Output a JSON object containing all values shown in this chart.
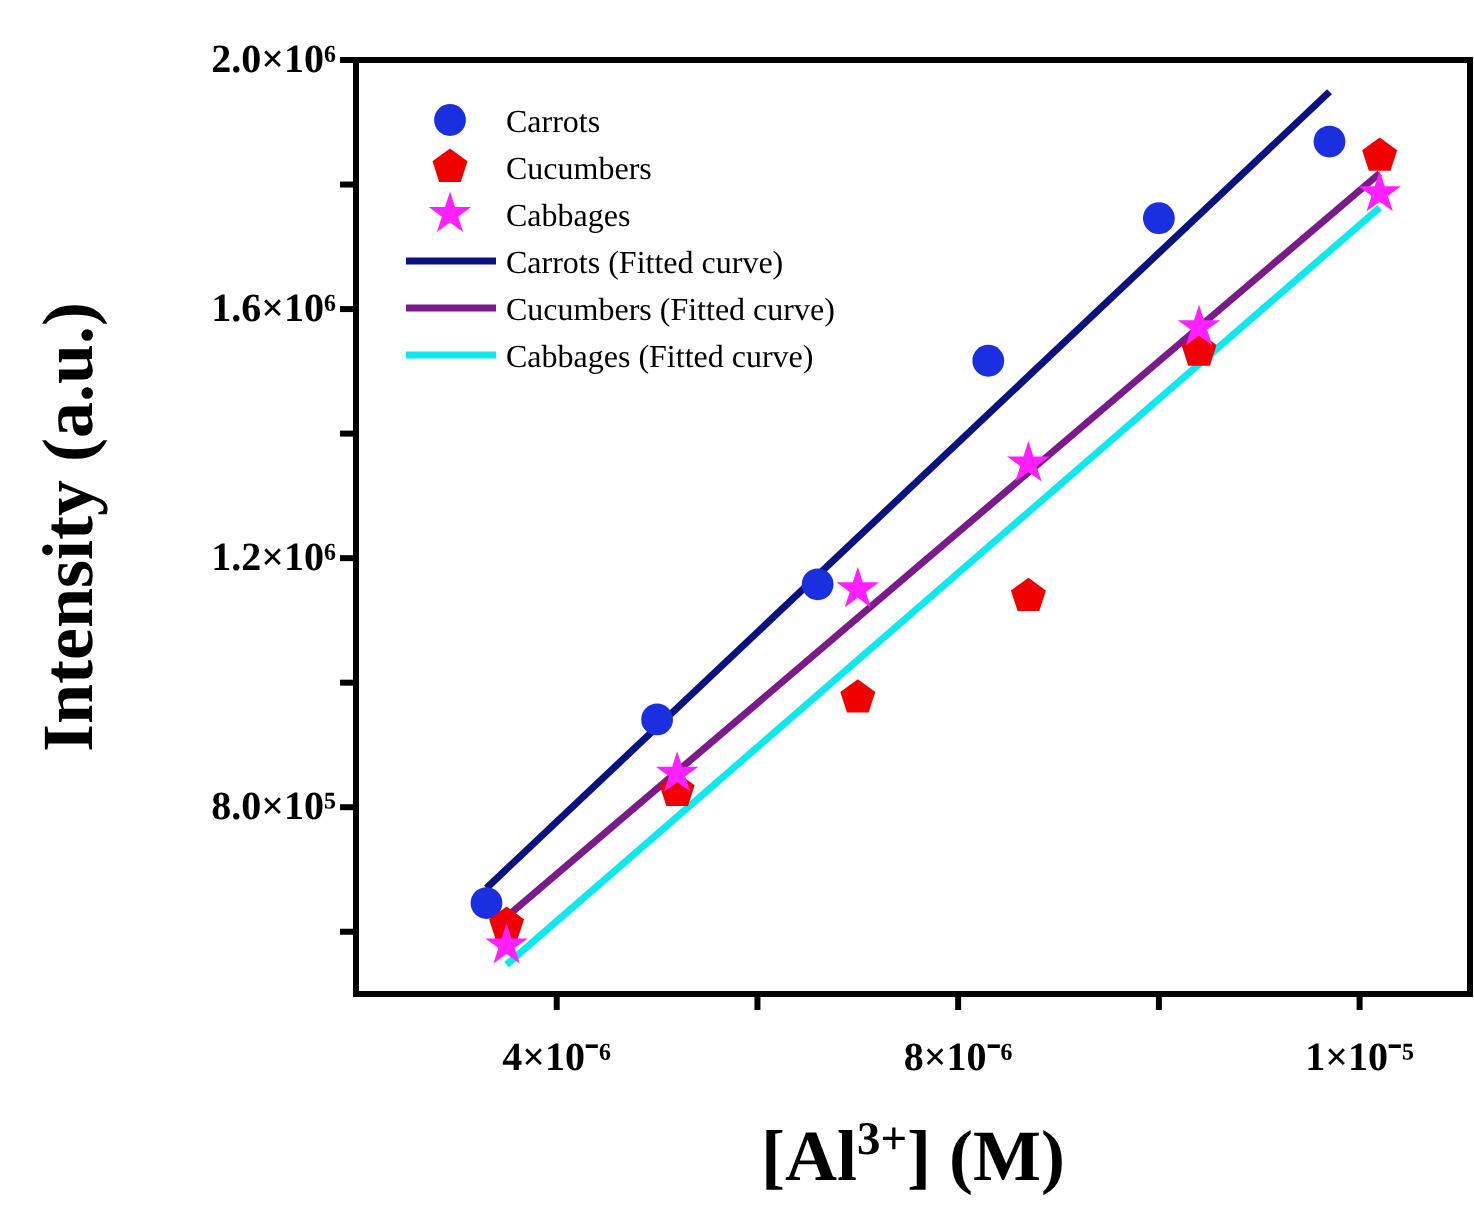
{
  "chart_data": {
    "type": "scatter",
    "xlabel": "[Al$^{3+}$] (M)",
    "ylabel": "Intensity (a.u.)",
    "xlim": [
      2e-06,
      1.31e-05
    ],
    "ylim": [
      500000,
      2000000
    ],
    "xticks": [
      {
        "value": 4e-06,
        "label": "4×10⁻⁶"
      },
      {
        "value": 6e-06,
        "label": null
      },
      {
        "value": 8e-06,
        "label": "8×10⁻⁶"
      },
      {
        "value": 1e-05,
        "label": null
      },
      {
        "value": 1.2e-05,
        "label": "1×10⁻⁵"
      }
    ],
    "yticks": [
      {
        "value": 600000,
        "label": null
      },
      {
        "value": 800000,
        "label": "8.0×10⁵"
      },
      {
        "value": 1000000,
        "label": null
      },
      {
        "value": 1200000,
        "label": "1.2×10⁶"
      },
      {
        "value": 1400000,
        "label": null
      },
      {
        "value": 1600000,
        "label": "1.6×10⁶"
      },
      {
        "value": 1800000,
        "label": null
      },
      {
        "value": 2000000,
        "label": "2.0×10⁶"
      }
    ],
    "grid": false,
    "legend": "top left",
    "series": [
      {
        "name": "Carrots",
        "marker": "circle",
        "color": "#1a2fe0",
        "x": [
          3.3e-06,
          5e-06,
          6.6e-06,
          8.3e-06,
          1e-05,
          1.17e-05
        ],
        "values": [
          646000,
          941000,
          1158000,
          1517000,
          1746000,
          1869000
        ]
      },
      {
        "name": "Cucumbers",
        "color": "#f00000",
        "x": [
          3.5e-06,
          5.2e-06,
          7e-06,
          8.7e-06,
          1.04e-05,
          1.22e-05
        ],
        "values": [
          611000,
          826000,
          976000,
          1139000,
          1533000,
          1846000
        ]
      },
      {
        "name": "Cabbages",
        "marker": "star",
        "color": "#ff20ff",
        "x": [
          3.5e-06,
          5.2e-06,
          7e-06,
          8.7e-06,
          1.04e-05,
          1.22e-05
        ],
        "values": [
          578000,
          854000,
          1150000,
          1352000,
          1571000,
          1786000
        ]
      },
      {
        "name": "Carrots (Fitted curve)",
        "type": "line",
        "line_style": "solid",
        "color": "#0a1280",
        "x": [
          3.3e-06,
          1.17e-05
        ],
        "values": [
          670000,
          1949000
        ]
      },
      {
        "name": "Cucumbers (Fitted curve)",
        "type": "line",
        "line_style": "solid",
        "color": "#7b1a8a",
        "x": [
          3.5e-06,
          1.22e-05
        ],
        "values": [
          624000,
          1818000
        ]
      },
      {
        "name": "Cabbages (Fitted curve)",
        "type": "line",
        "line_style": "solid",
        "color": "#10e8f0",
        "x": [
          3.5e-06,
          1.22e-05
        ],
        "values": [
          547000,
          1763000
        ]
      }
    ]
  }
}
